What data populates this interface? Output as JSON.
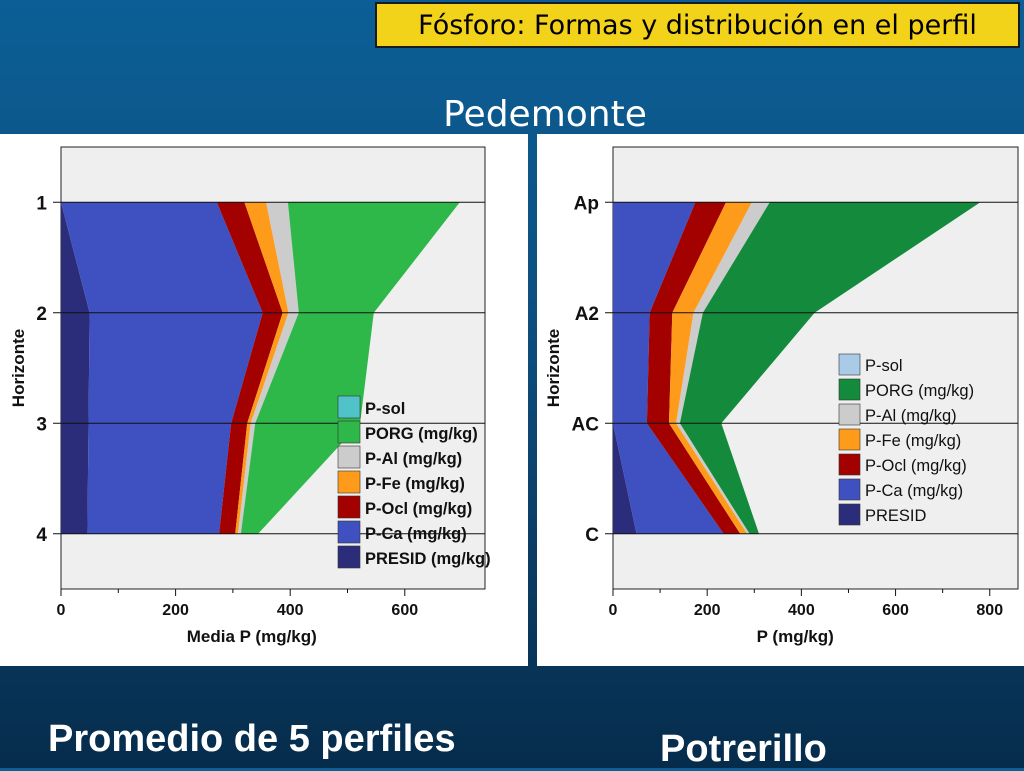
{
  "slide": {
    "title": "Fósforo: Formas y distribución en el perfil",
    "subtitle": "Pedemonte",
    "caption_left": "Promedio de 5 perfiles",
    "caption_right": "Potrerillo"
  },
  "chart_data": [
    {
      "type": "area",
      "orientation": "horizontal-stacked",
      "xlabel": "Media P (mg/kg)",
      "ylabel": "Horizonte",
      "xlim": [
        0,
        740
      ],
      "ylim": [
        0.5,
        4.5
      ],
      "xticks": [
        0,
        200,
        400,
        600
      ],
      "categories": [
        "1",
        "2",
        "3",
        "4"
      ],
      "legend": "center-right",
      "legend_bold": true,
      "series": [
        {
          "name": "PRESID (mg/kg)",
          "color": "#2b2d7a",
          "values": [
            0,
            50,
            48,
            46
          ]
        },
        {
          "name": "P-Ca (mg/kg)",
          "color": "#3f51c0",
          "values": [
            272,
            302,
            249,
            230
          ]
        },
        {
          "name": "P-Ocl (mg/kg)",
          "color": "#a30000",
          "values": [
            48,
            35,
            28,
            28
          ]
        },
        {
          "name": "P-Fe (mg/kg)",
          "color": "#ff9b1a",
          "values": [
            38,
            10,
            6,
            5
          ]
        },
        {
          "name": "P-Al (mg/kg)",
          "color": "#cccccc",
          "values": [
            38,
            18,
            8,
            5
          ]
        },
        {
          "name": "PORG (mg/kg)",
          "color": "#2fb84a",
          "values": [
            300,
            131,
            183,
            30
          ]
        },
        {
          "name": "P-sol",
          "color": "#4fc3c8",
          "values": [
            0,
            0,
            0,
            0
          ]
        }
      ]
    },
    {
      "type": "area",
      "orientation": "horizontal-stacked",
      "xlabel": "P (mg/kg)",
      "ylabel": "Horizonte",
      "xlim": [
        0,
        860
      ],
      "ylim": [
        0.5,
        4.5
      ],
      "xticks": [
        0,
        200,
        400,
        600,
        800
      ],
      "categories": [
        "Ap",
        "A2",
        "AC",
        "C"
      ],
      "legend": "center-right",
      "legend_bold": false,
      "series": [
        {
          "name": "PRESID",
          "color": "#2b2d7a",
          "values": [
            0,
            0,
            0,
            50
          ]
        },
        {
          "name": "P-Ca (mg/kg)",
          "color": "#3f51c0",
          "values": [
            175,
            78,
            72,
            185
          ]
        },
        {
          "name": "P-Ocl (mg/kg)",
          "color": "#a30000",
          "values": [
            65,
            48,
            47,
            35
          ]
        },
        {
          "name": "P-Fe (mg/kg)",
          "color": "#ff9b1a",
          "values": [
            55,
            45,
            15,
            15
          ]
        },
        {
          "name": "P-Al (mg/kg)",
          "color": "#cccccc",
          "values": [
            38,
            20,
            8,
            5
          ]
        },
        {
          "name": "PORG (mg/kg)",
          "color": "#138a3c",
          "values": [
            447,
            237,
            88,
            20
          ]
        },
        {
          "name": "P-sol",
          "color": "#a9cbe8",
          "values": [
            0,
            0,
            0,
            0
          ]
        }
      ]
    }
  ]
}
